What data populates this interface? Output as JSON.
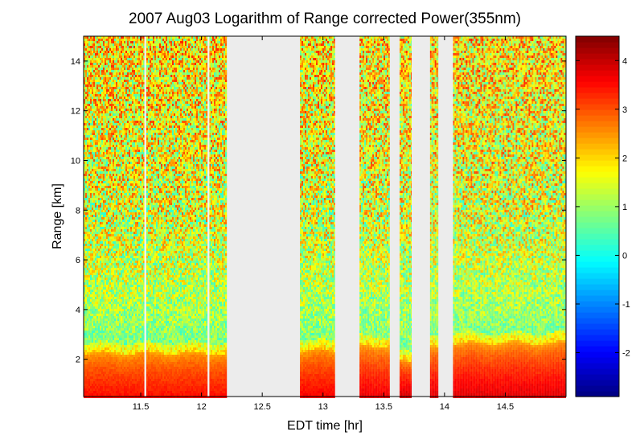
{
  "chart_data": {
    "type": "heatmap",
    "title": "2007 Aug03  Logarithm of Range corrected Power(355nm)",
    "xlabel": "EDT time [hr]",
    "ylabel": "Range [km]",
    "xlim": [
      11.03,
      15.0
    ],
    "ylim": [
      0.5,
      15.0
    ],
    "x_ticks": [
      "11.5",
      "12",
      "12.5",
      "13",
      "13.5",
      "14",
      "14.5"
    ],
    "x_tick_values": [
      11.5,
      12,
      12.5,
      13,
      13.5,
      14,
      14.5
    ],
    "y_ticks": [
      "2",
      "4",
      "6",
      "8",
      "10",
      "12",
      "14"
    ],
    "y_tick_values": [
      2,
      4,
      6,
      8,
      10,
      12,
      14
    ],
    "colorbar": {
      "colormap": "jet",
      "clim": [
        -2.9,
        4.5
      ],
      "ticks": [
        "-2",
        "-1",
        "0",
        "1",
        "2",
        "3",
        "4"
      ],
      "tick_values": [
        -2,
        -1,
        0,
        1,
        2,
        3,
        4
      ]
    },
    "data_gaps_hr": [
      [
        11.53,
        11.545
      ],
      [
        12.05,
        12.065
      ],
      [
        12.21,
        12.81
      ],
      [
        13.1,
        13.3
      ],
      [
        13.55,
        13.63
      ],
      [
        13.73,
        13.88
      ],
      [
        13.95,
        14.07
      ]
    ],
    "profile_segments": [
      {
        "t_start": 11.03,
        "t_end": 12.21,
        "boundary_layer_top_km": 2.3,
        "near_ground_value": 3.5
      },
      {
        "t_start": 12.81,
        "t_end": 13.1,
        "boundary_layer_top_km": 2.4,
        "near_ground_value": 3.6
      },
      {
        "t_start": 13.3,
        "t_end": 13.55,
        "boundary_layer_top_km": 2.6,
        "near_ground_value": 3.7
      },
      {
        "t_start": 13.63,
        "t_end": 13.73,
        "boundary_layer_top_km": 2.0,
        "near_ground_value": 3.9
      },
      {
        "t_start": 13.88,
        "t_end": 13.95,
        "boundary_layer_top_km": 2.5,
        "near_ground_value": 3.8
      },
      {
        "t_start": 14.07,
        "t_end": 15.0,
        "boundary_layer_top_km": 2.7,
        "near_ground_value": 3.8
      }
    ]
  }
}
